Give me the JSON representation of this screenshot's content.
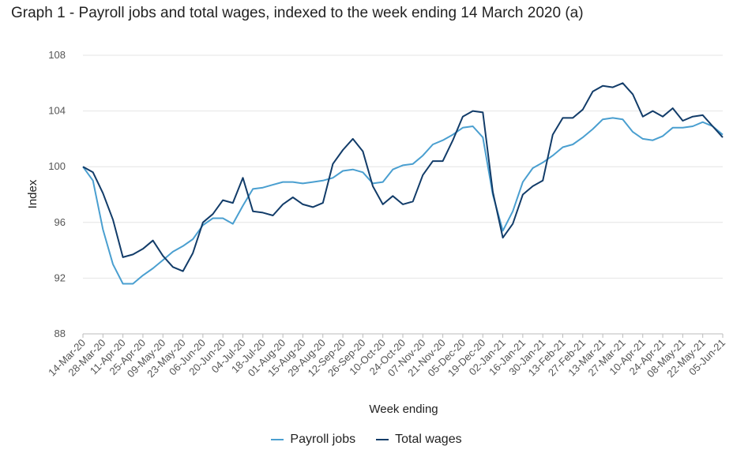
{
  "chart_data": {
    "type": "line",
    "title": "Graph 1 - Payroll jobs and total wages, indexed to the week ending 14 March 2020 (a)",
    "xlabel": "Week ending",
    "ylabel": "Index",
    "ylim": [
      88,
      108
    ],
    "yticks": [
      88,
      92,
      96,
      100,
      104,
      108
    ],
    "grid": true,
    "legend_position": "bottom",
    "x_tick_labels": [
      "14-Mar-20",
      "28-Mar-20",
      "11-Apr-20",
      "25-Apr-20",
      "09-May-20",
      "23-May-20",
      "06-Jun-20",
      "20-Jun-20",
      "04-Jul-20",
      "18-Jul-20",
      "01-Aug-20",
      "15-Aug-20",
      "29-Aug-20",
      "12-Sep-20",
      "26-Sep-20",
      "10-Oct-20",
      "24-Oct-20",
      "07-Nov-20",
      "21-Nov-20",
      "05-Dec-20",
      "19-Dec-20",
      "02-Jan-21",
      "16-Jan-21",
      "30-Jan-21",
      "13-Feb-21",
      "27-Feb-21",
      "13-Mar-21",
      "27-Mar-21",
      "10-Apr-21",
      "24-Apr-21",
      "08-May-21",
      "22-May-21",
      "05-Jun-21"
    ],
    "series": [
      {
        "name": "Payroll jobs",
        "color": "#4a9fd0",
        "values": [
          100.0,
          99.0,
          95.5,
          93.0,
          91.6,
          91.6,
          92.2,
          92.7,
          93.3,
          93.9,
          94.3,
          94.8,
          95.8,
          96.3,
          96.3,
          95.9,
          97.2,
          98.4,
          98.5,
          98.7,
          98.9,
          98.9,
          98.8,
          98.9,
          99.0,
          99.2,
          99.7,
          99.8,
          99.6,
          98.8,
          98.9,
          99.8,
          100.1,
          100.2,
          100.8,
          101.6,
          101.9,
          102.3,
          102.8,
          102.9,
          102.1,
          98.0,
          95.4,
          96.8,
          98.9,
          99.9,
          100.3,
          100.8,
          101.4,
          101.6,
          102.1,
          102.7,
          103.4,
          103.5,
          103.4,
          102.5,
          102.0,
          101.9,
          102.2,
          102.8,
          102.8,
          102.9,
          103.2,
          102.9,
          102.3
        ]
      },
      {
        "name": "Total wages",
        "color": "#123c69",
        "values": [
          100.0,
          99.6,
          98.1,
          96.2,
          93.5,
          93.7,
          94.1,
          94.7,
          93.6,
          92.8,
          92.5,
          93.8,
          96.0,
          96.6,
          97.6,
          97.4,
          99.2,
          96.8,
          96.7,
          96.5,
          97.3,
          97.8,
          97.3,
          97.1,
          97.4,
          100.2,
          101.2,
          102.0,
          101.1,
          98.6,
          97.3,
          97.9,
          97.3,
          97.5,
          99.4,
          100.4,
          100.4,
          101.9,
          103.6,
          104.0,
          103.9,
          98.2,
          94.9,
          95.9,
          98.0,
          98.6,
          99.0,
          102.3,
          103.5,
          103.5,
          104.1,
          105.4,
          105.8,
          105.7,
          106.0,
          105.2,
          103.6,
          104.0,
          103.6,
          104.2,
          103.3,
          103.6,
          103.7,
          102.9,
          102.1
        ]
      }
    ]
  }
}
